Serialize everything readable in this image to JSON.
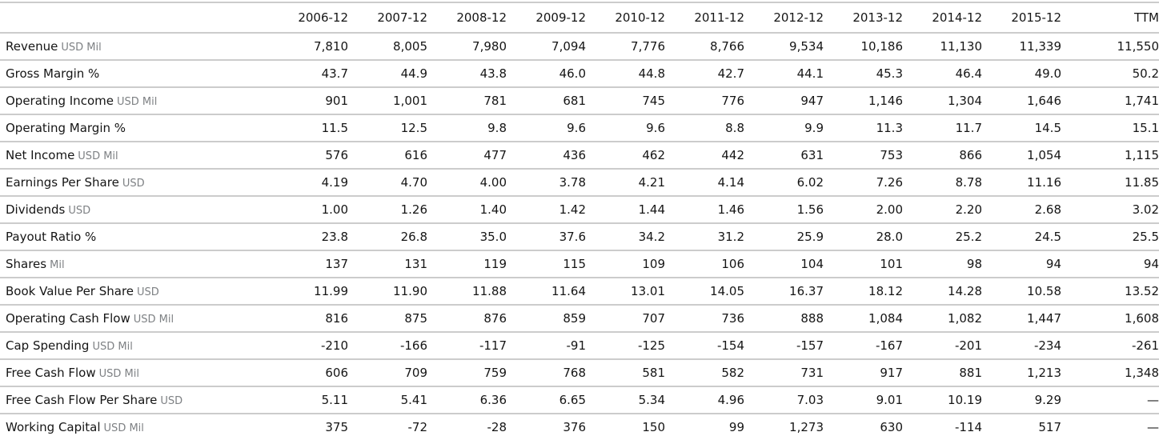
{
  "table": {
    "name": "key-ratios-financials",
    "columns": [
      "2006-12",
      "2007-12",
      "2008-12",
      "2009-12",
      "2010-12",
      "2011-12",
      "2012-12",
      "2013-12",
      "2014-12",
      "2015-12",
      "TTM"
    ],
    "rows": [
      {
        "label": "Revenue",
        "unit": "USD Mil",
        "values": [
          "7,810",
          "8,005",
          "7,980",
          "7,094",
          "7,776",
          "8,766",
          "9,534",
          "10,186",
          "11,130",
          "11,339",
          "11,550"
        ]
      },
      {
        "label": "Gross Margin %",
        "unit": "",
        "values": [
          "43.7",
          "44.9",
          "43.8",
          "46.0",
          "44.8",
          "42.7",
          "44.1",
          "45.3",
          "46.4",
          "49.0",
          "50.2"
        ]
      },
      {
        "label": "Operating Income",
        "unit": "USD Mil",
        "values": [
          "901",
          "1,001",
          "781",
          "681",
          "745",
          "776",
          "947",
          "1,146",
          "1,304",
          "1,646",
          "1,741"
        ]
      },
      {
        "label": "Operating Margin %",
        "unit": "",
        "values": [
          "11.5",
          "12.5",
          "9.8",
          "9.6",
          "9.6",
          "8.8",
          "9.9",
          "11.3",
          "11.7",
          "14.5",
          "15.1"
        ]
      },
      {
        "label": "Net Income",
        "unit": "USD Mil",
        "values": [
          "576",
          "616",
          "477",
          "436",
          "462",
          "442",
          "631",
          "753",
          "866",
          "1,054",
          "1,115"
        ]
      },
      {
        "label": "Earnings Per Share",
        "unit": "USD",
        "values": [
          "4.19",
          "4.70",
          "4.00",
          "3.78",
          "4.21",
          "4.14",
          "6.02",
          "7.26",
          "8.78",
          "11.16",
          "11.85"
        ]
      },
      {
        "label": "Dividends",
        "unit": "USD",
        "values": [
          "1.00",
          "1.26",
          "1.40",
          "1.42",
          "1.44",
          "1.46",
          "1.56",
          "2.00",
          "2.20",
          "2.68",
          "3.02"
        ]
      },
      {
        "label": "Payout Ratio %",
        "unit": "",
        "values": [
          "23.8",
          "26.8",
          "35.0",
          "37.6",
          "34.2",
          "31.2",
          "25.9",
          "28.0",
          "25.2",
          "24.5",
          "25.5"
        ]
      },
      {
        "label": "Shares",
        "unit": "Mil",
        "values": [
          "137",
          "131",
          "119",
          "115",
          "109",
          "106",
          "104",
          "101",
          "98",
          "94",
          "94"
        ]
      },
      {
        "label": "Book Value Per Share",
        "unit": "USD",
        "values": [
          "11.99",
          "11.90",
          "11.88",
          "11.64",
          "13.01",
          "14.05",
          "16.37",
          "18.12",
          "14.28",
          "10.58",
          "13.52"
        ]
      },
      {
        "label": "Operating Cash Flow",
        "unit": "USD Mil",
        "values": [
          "816",
          "875",
          "876",
          "859",
          "707",
          "736",
          "888",
          "1,084",
          "1,082",
          "1,447",
          "1,608"
        ]
      },
      {
        "label": "Cap Spending",
        "unit": "USD Mil",
        "values": [
          "-210",
          "-166",
          "-117",
          "-91",
          "-125",
          "-154",
          "-157",
          "-167",
          "-201",
          "-234",
          "-261"
        ]
      },
      {
        "label": "Free Cash Flow",
        "unit": "USD Mil",
        "values": [
          "606",
          "709",
          "759",
          "768",
          "581",
          "582",
          "731",
          "917",
          "881",
          "1,213",
          "1,348"
        ]
      },
      {
        "label": "Free Cash Flow Per Share",
        "unit": "USD",
        "values": [
          "5.11",
          "5.41",
          "6.36",
          "6.65",
          "5.34",
          "4.96",
          "7.03",
          "9.01",
          "10.19",
          "9.29",
          "—"
        ]
      },
      {
        "label": "Working Capital",
        "unit": "USD Mil",
        "values": [
          "375",
          "-72",
          "-28",
          "376",
          "150",
          "99",
          "1,273",
          "630",
          "-114",
          "517",
          "—"
        ]
      }
    ]
  },
  "colors": {
    "text": "#151515",
    "unit_text": "#7e8184",
    "row_border": "#cccccc",
    "background": "#ffffff"
  }
}
